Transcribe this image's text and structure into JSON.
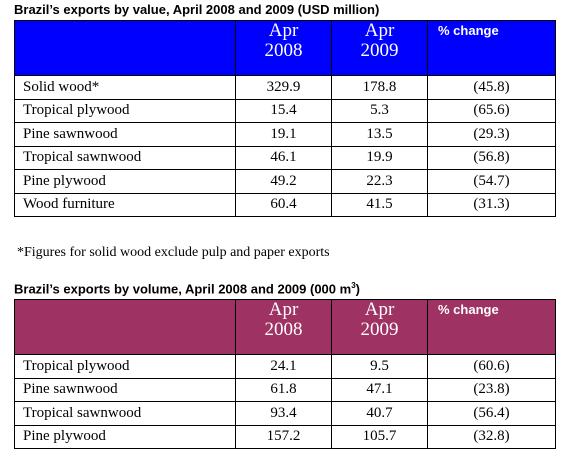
{
  "table1": {
    "title": "Brazil’s exports by value, April 2008 and 2009 (USD million)",
    "headers": {
      "col0": "",
      "col1": [
        "Apr",
        "2008"
      ],
      "col2": [
        "Apr",
        "2009"
      ],
      "col3": "% change"
    },
    "rows": [
      {
        "label": "Solid wood*",
        "v2008": "329.9",
        "v2009": "178.8",
        "change": "(45.8)"
      },
      {
        "label": "Tropical plywood",
        "v2008": "15.4",
        "v2009": "5.3",
        "change": "(65.6)"
      },
      {
        "label": "Pine sawnwood",
        "v2008": "19.1",
        "v2009": "13.5",
        "change": "(29.3)"
      },
      {
        "label": "Tropical sawnwood",
        "v2008": "46.1",
        "v2009": "19.9",
        "change": "(56.8)"
      },
      {
        "label": "Pine plywood",
        "v2008": "49.2",
        "v2009": "22.3",
        "change": "(54.7)"
      },
      {
        "label": "Wood furniture",
        "v2008": "60.4",
        "v2009": "41.5",
        "change": "(31.3)"
      }
    ],
    "header_color": "#0000ff"
  },
  "footnote": "*Figures for solid wood exclude pulp and paper exports",
  "table2": {
    "title": "Brazil’s exports by volume, April 2008 and 2009 (000 m",
    "title_sup": "3",
    "title_end": ")",
    "headers": {
      "col0": "",
      "col1": [
        "Apr",
        "2008"
      ],
      "col2": [
        "Apr",
        "2009"
      ],
      "col3": "% change"
    },
    "rows": [
      {
        "label": "Tropical plywood",
        "v2008": "24.1",
        "v2009": "9.5",
        "change": "(60.6)"
      },
      {
        "label": "Pine sawnwood",
        "v2008": "61.8",
        "v2009": "47.1",
        "change": "(23.8)"
      },
      {
        "label": "Tropical sawnwood",
        "v2008": "93.4",
        "v2009": "40.7",
        "change": "(56.4)"
      },
      {
        "label": "Pine plywood",
        "v2008": "157.2",
        "v2009": "105.7",
        "change": "(32.8)"
      }
    ],
    "header_color": "#9e3263"
  }
}
